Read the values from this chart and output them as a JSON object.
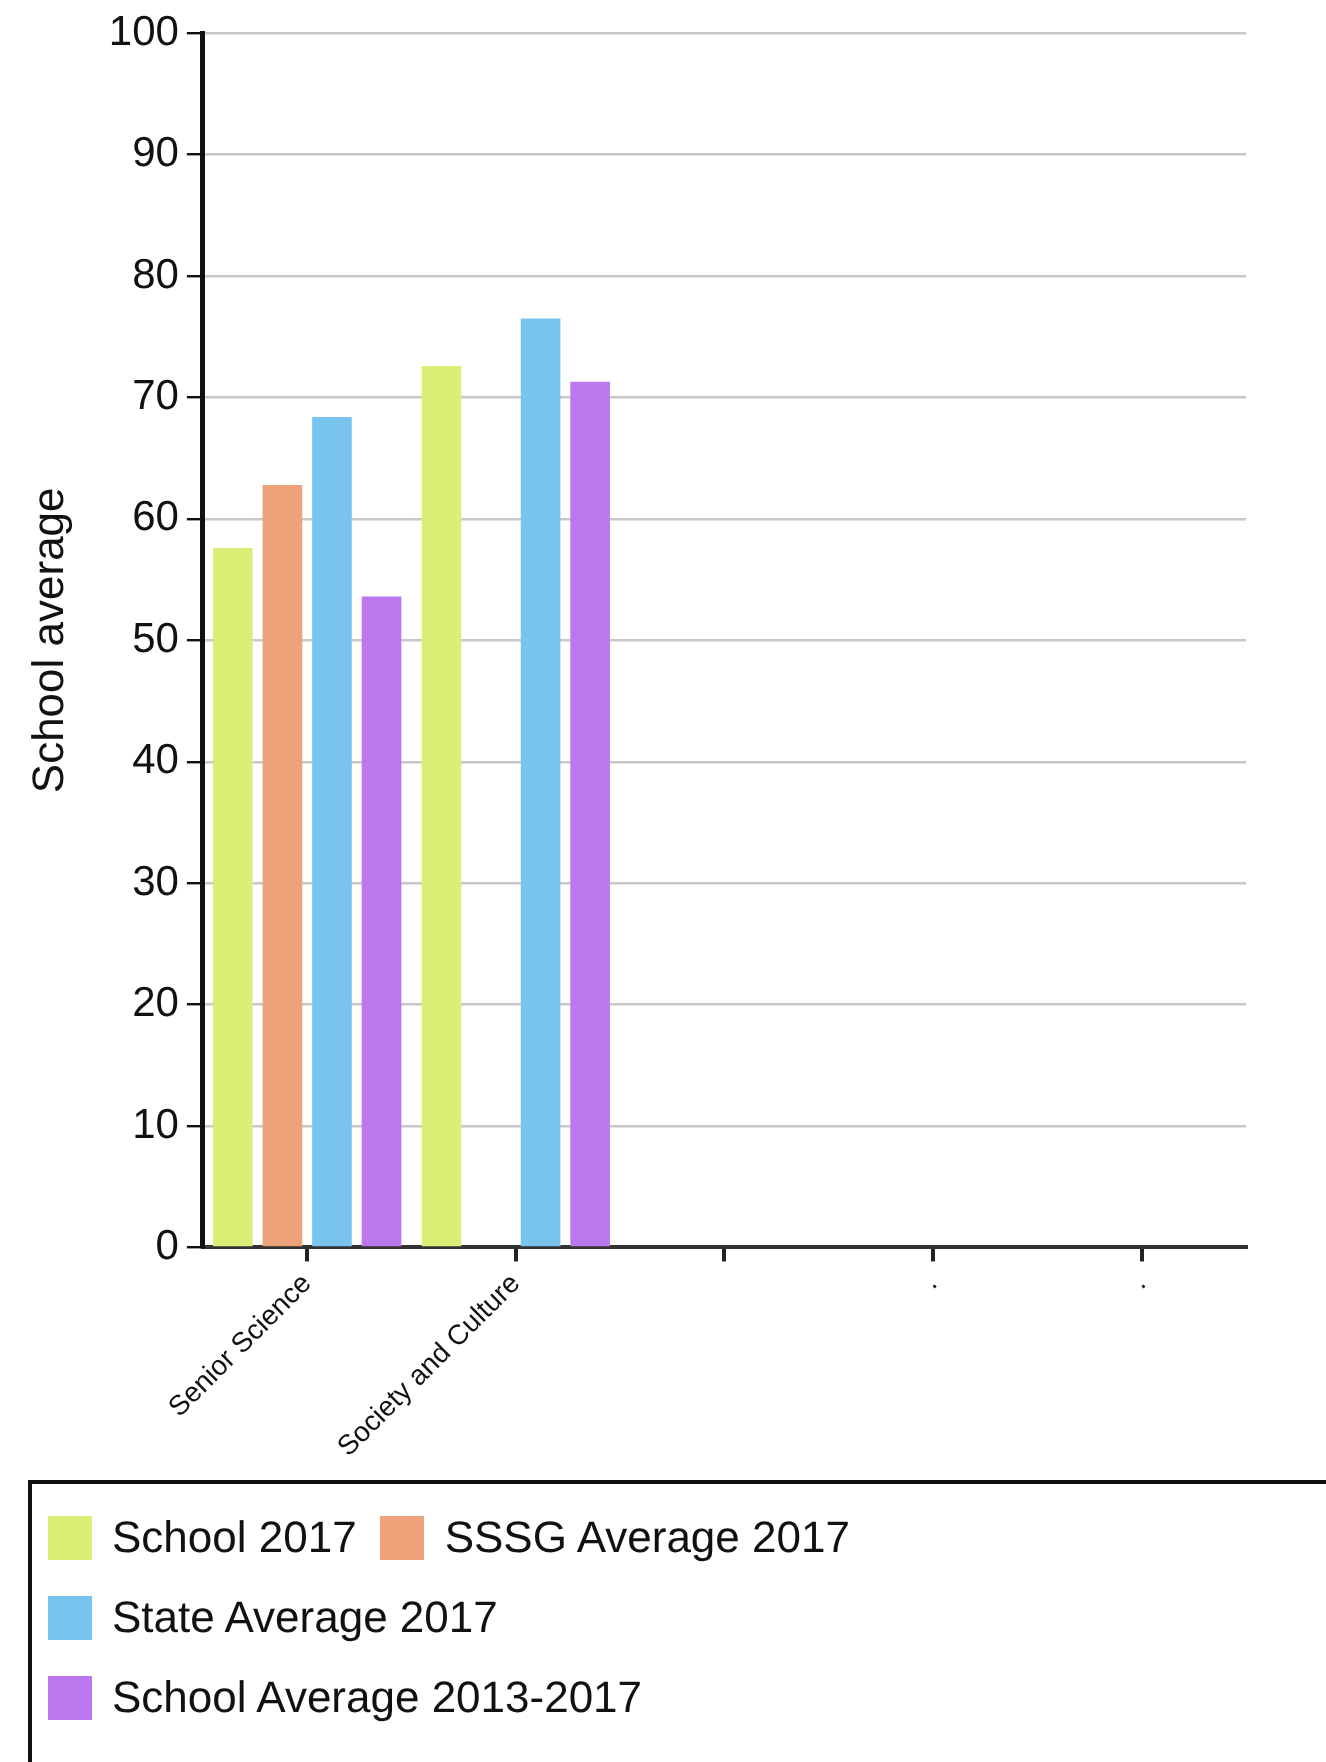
{
  "chart_data": {
    "type": "bar",
    "ylabel": "School average",
    "categories": [
      "Senior Science",
      "Society and Culture",
      null,
      ".",
      "."
    ],
    "series": [
      {
        "name": "School 2017",
        "color": "#d9ef76",
        "values": [
          57.6,
          72.6,
          null,
          null,
          null
        ]
      },
      {
        "name": "SSSG Average 2017",
        "color": "#eea279",
        "values": [
          62.8,
          0,
          null,
          null,
          null
        ]
      },
      {
        "name": "State Average 2017",
        "color": "#78c4ee",
        "values": [
          68.4,
          76.5,
          null,
          null,
          null
        ]
      },
      {
        "name": "School Average 2013-2017",
        "color": "#bb78ee",
        "values": [
          53.6,
          71.3,
          null,
          null,
          null
        ]
      }
    ],
    "ylim": [
      0,
      100
    ],
    "yticks": [
      0,
      10,
      20,
      30,
      40,
      50,
      60,
      70,
      80,
      90,
      100
    ],
    "grid": "y",
    "legend": "bottom"
  }
}
